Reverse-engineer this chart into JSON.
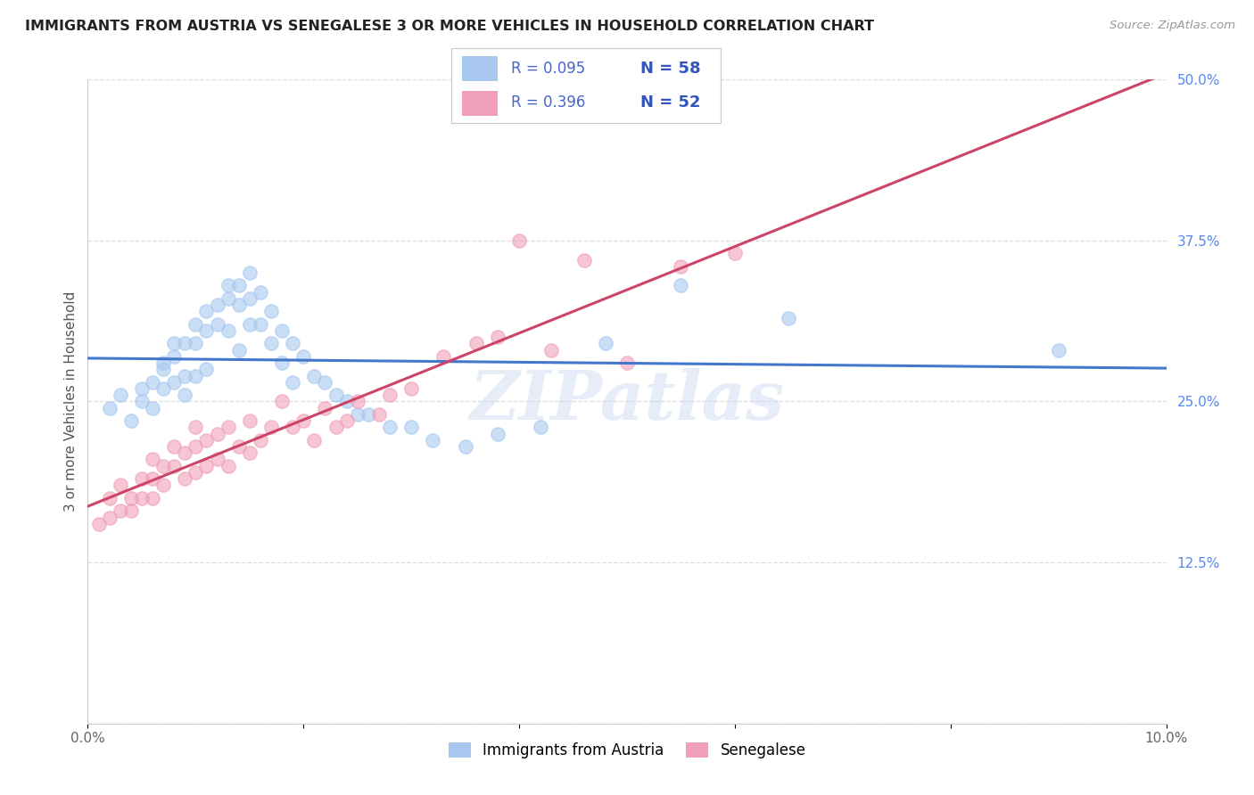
{
  "title": "IMMIGRANTS FROM AUSTRIA VS SENEGALESE 3 OR MORE VEHICLES IN HOUSEHOLD CORRELATION CHART",
  "source": "Source: ZipAtlas.com",
  "ylabel": "3 or more Vehicles in Household",
  "x_min": 0.0,
  "x_max": 0.1,
  "y_min": 0.0,
  "y_max": 0.5,
  "x_ticks": [
    0.0,
    0.02,
    0.04,
    0.06,
    0.08,
    0.1
  ],
  "x_tick_labels": [
    "0.0%",
    "",
    "",
    "",
    "",
    "10.0%"
  ],
  "y_ticks_right": [
    0.0,
    0.125,
    0.25,
    0.375,
    0.5
  ],
  "y_tick_labels_right": [
    "",
    "12.5%",
    "25.0%",
    "37.5%",
    "50.0%"
  ],
  "watermark": "ZIPatlas",
  "blue_color": "#A8C8F0",
  "pink_color": "#F0A0B8",
  "blue_line_color": "#4477CC",
  "pink_line_color": "#CC4466",
  "legend_color": "#4466CC",
  "legend_N_color": "#3355BB",
  "austria_r": 0.095,
  "austria_n": 58,
  "senegal_r": 0.396,
  "senegal_n": 52,
  "austria_scatter_x": [
    0.002,
    0.003,
    0.004,
    0.005,
    0.005,
    0.006,
    0.006,
    0.007,
    0.007,
    0.007,
    0.008,
    0.008,
    0.008,
    0.009,
    0.009,
    0.009,
    0.01,
    0.01,
    0.01,
    0.011,
    0.011,
    0.011,
    0.012,
    0.012,
    0.013,
    0.013,
    0.013,
    0.014,
    0.014,
    0.014,
    0.015,
    0.015,
    0.015,
    0.016,
    0.016,
    0.017,
    0.017,
    0.018,
    0.018,
    0.019,
    0.019,
    0.02,
    0.021,
    0.022,
    0.023,
    0.024,
    0.025,
    0.026,
    0.028,
    0.03,
    0.032,
    0.035,
    0.038,
    0.042,
    0.048,
    0.055,
    0.065,
    0.09
  ],
  "austria_scatter_y": [
    0.245,
    0.255,
    0.235,
    0.26,
    0.25,
    0.265,
    0.245,
    0.28,
    0.275,
    0.26,
    0.295,
    0.285,
    0.265,
    0.295,
    0.27,
    0.255,
    0.31,
    0.295,
    0.27,
    0.32,
    0.305,
    0.275,
    0.325,
    0.31,
    0.34,
    0.33,
    0.305,
    0.34,
    0.325,
    0.29,
    0.35,
    0.33,
    0.31,
    0.335,
    0.31,
    0.32,
    0.295,
    0.305,
    0.28,
    0.295,
    0.265,
    0.285,
    0.27,
    0.265,
    0.255,
    0.25,
    0.24,
    0.24,
    0.23,
    0.23,
    0.22,
    0.215,
    0.225,
    0.23,
    0.295,
    0.34,
    0.315,
    0.29
  ],
  "senegal_scatter_x": [
    0.001,
    0.002,
    0.002,
    0.003,
    0.003,
    0.004,
    0.004,
    0.005,
    0.005,
    0.006,
    0.006,
    0.006,
    0.007,
    0.007,
    0.008,
    0.008,
    0.009,
    0.009,
    0.01,
    0.01,
    0.01,
    0.011,
    0.011,
    0.012,
    0.012,
    0.013,
    0.013,
    0.014,
    0.015,
    0.015,
    0.016,
    0.017,
    0.018,
    0.019,
    0.02,
    0.021,
    0.022,
    0.023,
    0.024,
    0.025,
    0.027,
    0.028,
    0.03,
    0.033,
    0.036,
    0.038,
    0.04,
    0.043,
    0.046,
    0.05,
    0.055,
    0.06
  ],
  "senegal_scatter_y": [
    0.155,
    0.16,
    0.175,
    0.165,
    0.185,
    0.165,
    0.175,
    0.175,
    0.19,
    0.175,
    0.19,
    0.205,
    0.185,
    0.2,
    0.2,
    0.215,
    0.19,
    0.21,
    0.195,
    0.215,
    0.23,
    0.2,
    0.22,
    0.205,
    0.225,
    0.2,
    0.23,
    0.215,
    0.21,
    0.235,
    0.22,
    0.23,
    0.25,
    0.23,
    0.235,
    0.22,
    0.245,
    0.23,
    0.235,
    0.25,
    0.24,
    0.255,
    0.26,
    0.285,
    0.295,
    0.3,
    0.375,
    0.29,
    0.36,
    0.28,
    0.355,
    0.365
  ]
}
